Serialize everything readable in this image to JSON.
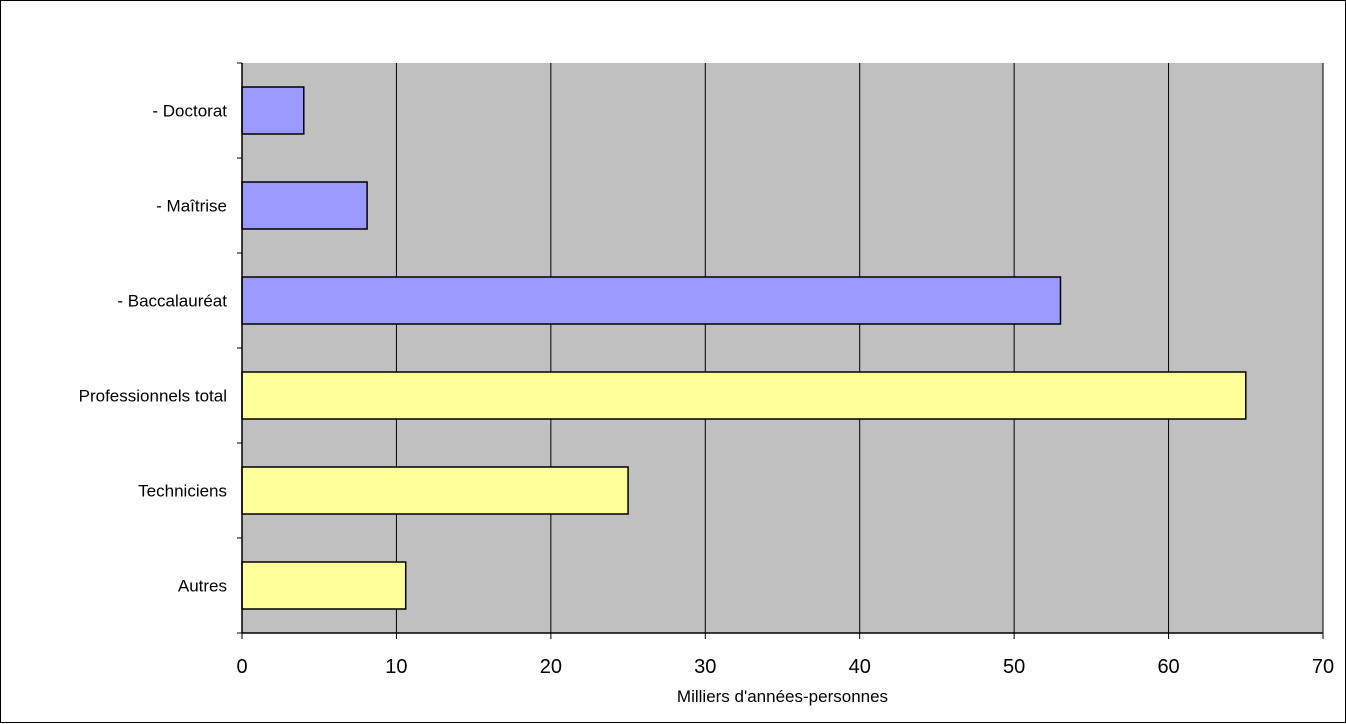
{
  "chart_data": {
    "type": "bar",
    "orientation": "horizontal",
    "title": "",
    "xlabel": "Milliers d'années-personnes",
    "ylabel": "",
    "xlim": [
      0,
      70
    ],
    "xticks": [
      0,
      10,
      20,
      30,
      40,
      50,
      60,
      70
    ],
    "grid": true,
    "legend": "none",
    "categories": [
      "- Doctorat",
      "- Maîtrise",
      "- Baccalauréat",
      "Professionnels total",
      "Techniciens",
      "Autres"
    ],
    "values": [
      4,
      8.1,
      53,
      65,
      25,
      10.6
    ],
    "bar_colors": [
      "#9999ff",
      "#9999ff",
      "#9999ff",
      "#ffff99",
      "#ffff99",
      "#ffff99"
    ],
    "plot_background": "#c0c0c0",
    "grid_color": "#000000"
  }
}
